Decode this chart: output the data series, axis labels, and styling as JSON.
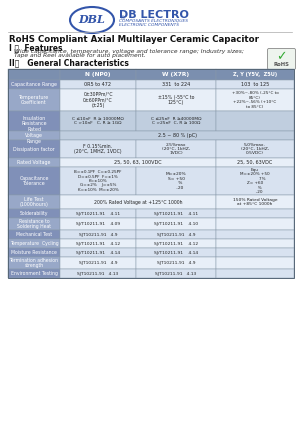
{
  "title": "RoHS Compliant Axial Multilayer Ceramic Capacitor",
  "s1_title": "I 。  Features",
  "s1_line1": "Wide capacitance, temperature, voltage and tolerance range; Industry sizes;",
  "s1_line2": "Tape and Reel available for auto placement.",
  "s2_title": "II。   General Characteristics",
  "col_headers": [
    "",
    "N (NP0)",
    "W (X7R)",
    "Z, Y (Y5V,  Z5U)"
  ],
  "header_bg": "#7b8faf",
  "label_bg_even": "#8090b8",
  "label_bg_odd": "#98a8c8",
  "cell_bg_even": "#d8e2f0",
  "cell_bg_odd": "#e8eff8",
  "cell_special": "#c0cedf",
  "border_color": "#8899aa",
  "text_white": "#ffffff",
  "text_dark": "#222222",
  "logo_blue": "#3355aa",
  "rohs_green": "#33aa33"
}
